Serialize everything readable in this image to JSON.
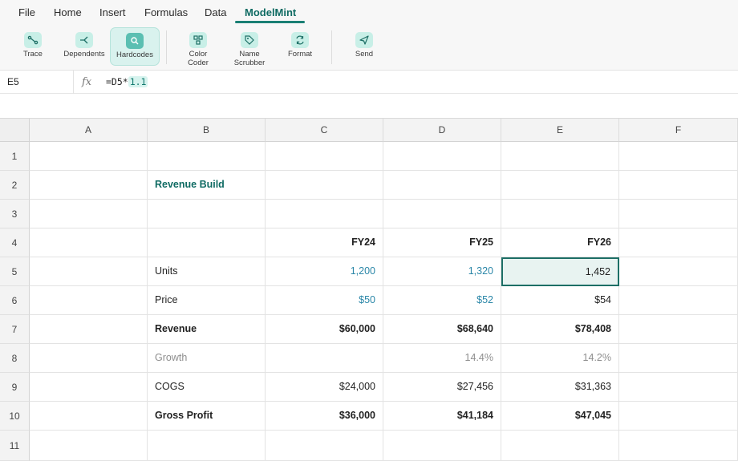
{
  "menu": {
    "items": [
      "File",
      "Home",
      "Insert",
      "Formulas",
      "Data",
      "ModelMint"
    ],
    "active": "ModelMint"
  },
  "ribbon": {
    "buttons": [
      {
        "label": "Trace",
        "icon": "trace-icon"
      },
      {
        "label": "Dependents",
        "icon": "dependents-icon"
      },
      {
        "label": "Hardcodes",
        "icon": "search-icon",
        "selected": true
      },
      {
        "label": "Color",
        "label2": "Coder",
        "icon": "color-coder-icon"
      },
      {
        "label": "Name",
        "label2": "Scrubber",
        "icon": "tag-icon"
      },
      {
        "label": "Format",
        "icon": "refresh-icon"
      },
      {
        "label": "Send",
        "icon": "send-icon"
      }
    ]
  },
  "formula_bar": {
    "name_box": "E5",
    "fx": "fx",
    "formula_prefix": "=D5*",
    "formula_highlight": "1.1"
  },
  "sheet": {
    "columns": [
      "A",
      "B",
      "C",
      "D",
      "E",
      "F"
    ],
    "rows": [
      "1",
      "2",
      "3",
      "4",
      "5",
      "6",
      "7",
      "8",
      "9",
      "10",
      "11"
    ],
    "selected_cell": "E5",
    "cells": {
      "B2": "Revenue Build",
      "C4": "FY24",
      "D4": "FY25",
      "E4": "FY26",
      "B5": "Units",
      "C5": "1,200",
      "D5": "1,320",
      "E5": "1,452",
      "B6": "Price",
      "C6": "$50",
      "D6": "$52",
      "E6": "$54",
      "B7": "Revenue",
      "C7": "$60,000",
      "D7": "$68,640",
      "E7": "$78,408",
      "B8": "Growth",
      "D8": "14.4%",
      "E8": "14.2%",
      "B9": "COGS",
      "C9": "$24,000",
      "D9": "$27,456",
      "E9": "$31,363",
      "B10": "Gross Profit",
      "C10": "$36,000",
      "D10": "$41,184",
      "E10": "$47,045"
    }
  },
  "colors": {
    "accent": "#1a7f74",
    "input_blue": "#2b87a8",
    "muted": "#8e8e8e",
    "selection_fill": "#e8f3f1"
  }
}
